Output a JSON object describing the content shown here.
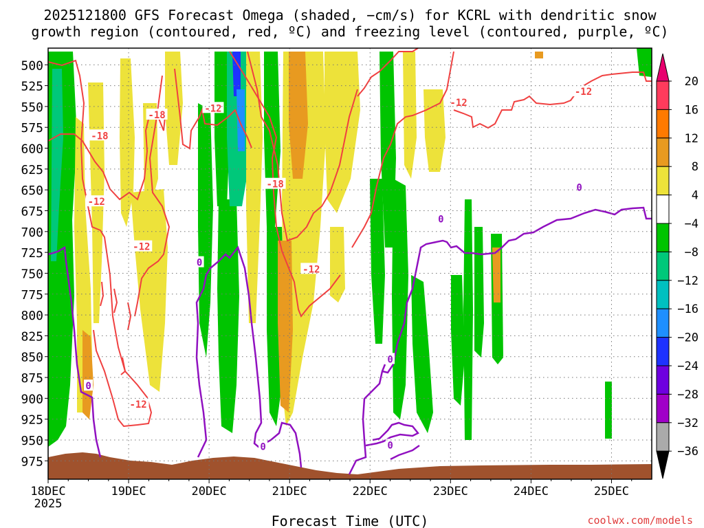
{
  "chart_data": {
    "type": "heatmap",
    "title": "2025121800 GFS Forecast Omega (shaded, −cm/s) for KCRL with dendritic snow",
    "subtitle": "growth region (contoured, red, ºC) and freezing level (contoured, purple, ºC)",
    "xlabel": "Forecast Time (UTC)",
    "ylabel": "",
    "credit": "coolwx.com/models",
    "x_ticks": [
      {
        "label": "18DEC",
        "sub": "2025",
        "day": 0
      },
      {
        "label": "19DEC",
        "sub": "",
        "day": 1
      },
      {
        "label": "20DEC",
        "sub": "",
        "day": 2
      },
      {
        "label": "21DEC",
        "sub": "",
        "day": 3
      },
      {
        "label": "22DEC",
        "sub": "",
        "day": 4
      },
      {
        "label": "23DEC",
        "sub": "",
        "day": 5
      },
      {
        "label": "24DEC",
        "sub": "",
        "day": 6
      },
      {
        "label": "25DEC",
        "sub": "",
        "day": 7
      }
    ],
    "xlim_days": [
      0,
      7.5
    ],
    "ylim": [
      997,
      480
    ],
    "y_ticks": [
      500,
      525,
      550,
      575,
      600,
      625,
      650,
      675,
      700,
      725,
      750,
      775,
      800,
      825,
      850,
      875,
      900,
      925,
      950,
      975
    ],
    "colorbar": {
      "labels": [
        "20",
        "16",
        "12",
        "8",
        "4",
        "−4",
        "−8",
        "−12",
        "−16",
        "−20",
        "−24",
        "−28",
        "−32",
        "−36"
      ],
      "colors": [
        "#ff3b5c",
        "#ff7a00",
        "#e89a20",
        "#ede23a",
        "#ffffff",
        "#00c400",
        "#00c87a",
        "#00c0c0",
        "#1e8fff",
        "#1e32ff",
        "#6e00e0",
        "#a000c8",
        "#aaaaaa"
      ],
      "top_arrow": "#e8006e",
      "bottom_arrow": "#000000"
    },
    "colors": {
      "dgz_contour": "#f04040",
      "freezing_contour": "#9010c0",
      "terrain": "#a0522d",
      "grid": "#777777"
    },
    "contour_labels": [
      {
        "text": "-18",
        "day": 1.35,
        "p": 560,
        "kind": "dgz"
      },
      {
        "text": "-18",
        "day": 0.64,
        "p": 585,
        "kind": "dgz"
      },
      {
        "text": "-12",
        "day": 2.05,
        "p": 552,
        "kind": "dgz"
      },
      {
        "text": "-12",
        "day": 0.6,
        "p": 664,
        "kind": "dgz"
      },
      {
        "text": "-12",
        "day": 1.16,
        "p": 718,
        "kind": "dgz"
      },
      {
        "text": "-18",
        "day": 2.82,
        "p": 643,
        "kind": "dgz"
      },
      {
        "text": "-12",
        "day": 3.27,
        "p": 745,
        "kind": "dgz"
      },
      {
        "text": "-12",
        "day": 1.12,
        "p": 907,
        "kind": "dgz"
      },
      {
        "text": "-12",
        "day": 5.1,
        "p": 545,
        "kind": "dgz"
      },
      {
        "text": "-12",
        "day": 6.65,
        "p": 532,
        "kind": "dgz"
      },
      {
        "text": "0",
        "day": 0.5,
        "p": 885,
        "kind": "frz"
      },
      {
        "text": "0",
        "day": 1.88,
        "p": 737,
        "kind": "frz"
      },
      {
        "text": "0",
        "day": 2.67,
        "p": 958,
        "kind": "frz"
      },
      {
        "text": "0",
        "day": 4.25,
        "p": 853,
        "kind": "frz"
      },
      {
        "text": "0",
        "day": 4.25,
        "p": 956,
        "kind": "frz"
      },
      {
        "text": "0",
        "day": 4.88,
        "p": 685,
        "kind": "frz"
      },
      {
        "text": "0",
        "day": 6.6,
        "p": 647,
        "kind": "frz"
      }
    ]
  }
}
